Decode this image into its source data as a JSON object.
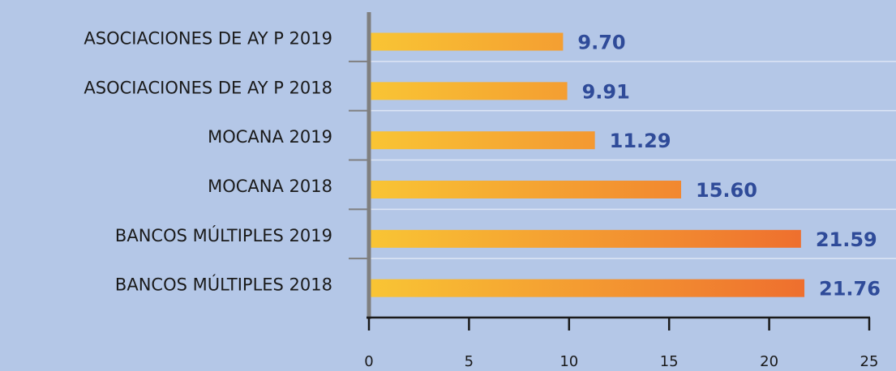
{
  "chart_data": {
    "type": "barh",
    "categories": [
      "ASOCIACIONES DE AY P 2019",
      "ASOCIACIONES DE AY P 2018",
      "MOCANA 2019",
      "MOCANA 2018",
      "BANCOS MÚLTIPLES 2019",
      "BANCOS MÚLTIPLES 2018"
    ],
    "values": [
      9.7,
      9.91,
      11.29,
      15.6,
      21.59,
      21.76
    ],
    "value_labels": [
      "9.70",
      "9.91",
      "11.29",
      "15.60",
      "21.59",
      "21.76"
    ],
    "gradient": [
      "#f9c534",
      "#ee6c2e"
    ],
    "label_color": "#2f4b99",
    "xlim": [
      0,
      25
    ],
    "xticks": [
      0,
      5,
      10,
      15,
      20,
      25
    ]
  }
}
